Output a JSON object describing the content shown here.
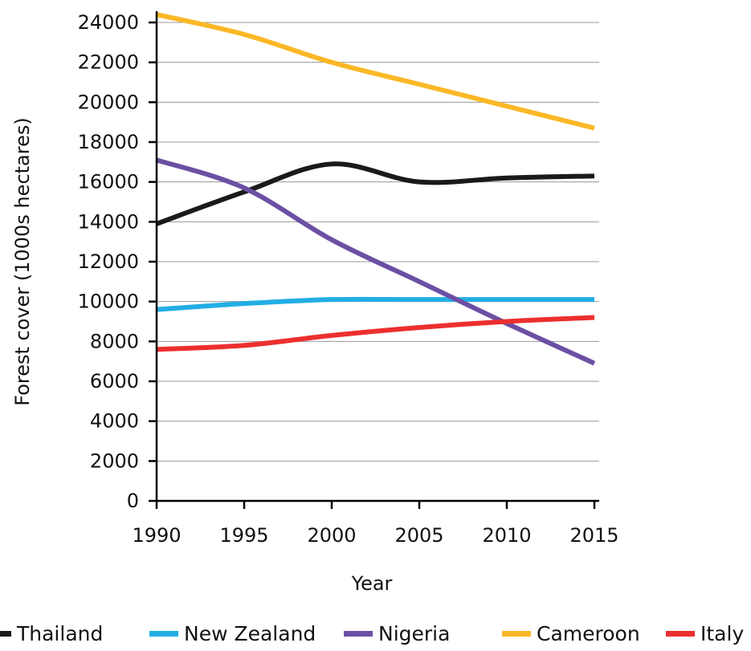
{
  "chart_data": {
    "type": "line",
    "title": "",
    "xlabel": "Year",
    "ylabel": "Forest cover (1000s hectares)",
    "x": [
      1990,
      1995,
      2000,
      2005,
      2010,
      2015
    ],
    "xlim": [
      1990,
      2015
    ],
    "ylim": [
      0,
      24000
    ],
    "xticks": [
      "1990",
      "1995",
      "2000",
      "2005",
      "2010",
      "2015"
    ],
    "yticks": [
      "0",
      "2000",
      "4000",
      "6000",
      "8000",
      "10000",
      "12000",
      "14000",
      "16000",
      "18000",
      "20000",
      "22000",
      "24000"
    ],
    "grid": "horizontal",
    "legend_position": "bottom",
    "series": [
      {
        "name": "Thailand",
        "color": "#1a1a1a",
        "values": [
          13900,
          15500,
          16900,
          16000,
          16200,
          16300
        ]
      },
      {
        "name": "New Zealand",
        "color": "#22aee4",
        "values": [
          9600,
          9900,
          10100,
          10100,
          10100,
          10100
        ]
      },
      {
        "name": "Nigeria",
        "color": "#6c4fa3",
        "values": [
          17100,
          15700,
          13100,
          11000,
          8900,
          6900
        ]
      },
      {
        "name": "Cameroon",
        "color": "#fbb826",
        "values": [
          24400,
          23400,
          22000,
          20900,
          19800,
          18700
        ]
      },
      {
        "name": "Italy",
        "color": "#ec2f2f",
        "values": [
          7600,
          7800,
          8300,
          8700,
          9000,
          9200
        ]
      }
    ]
  }
}
